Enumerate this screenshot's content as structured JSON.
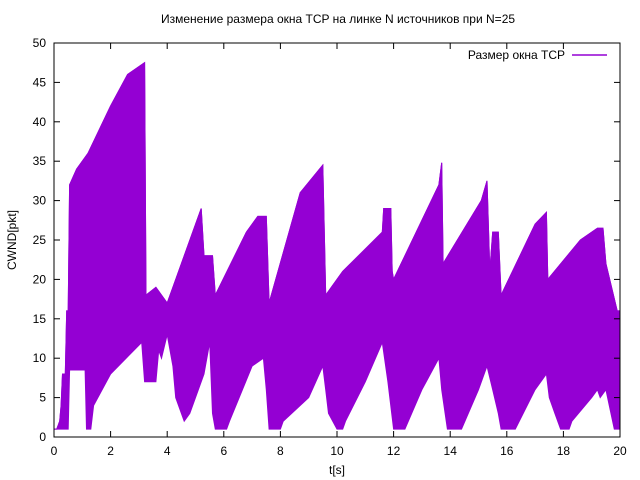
{
  "chart_data": {
    "type": "line",
    "title": "Изменение размера окна TCP на линке N источников при N=25",
    "xlabel": "t[s]",
    "ylabel": "CWND[pkt]",
    "xlim": [
      0,
      20
    ],
    "ylim": [
      0,
      50
    ],
    "xticks": [
      0,
      2,
      4,
      6,
      8,
      10,
      12,
      14,
      16,
      18,
      20
    ],
    "yticks": [
      0,
      5,
      10,
      15,
      20,
      25,
      30,
      35,
      40,
      45,
      50
    ],
    "grid": false,
    "legend_position": "top-right",
    "series": [
      {
        "name": "Размер окна TCP",
        "color": "#9400d3",
        "style": "dense oscillating fill (upper/lower envelope)",
        "upper_envelope": [
          [
            0.0,
            1
          ],
          [
            0.1,
            1
          ],
          [
            0.2,
            2
          ],
          [
            0.25,
            4
          ],
          [
            0.3,
            8
          ],
          [
            0.4,
            8
          ],
          [
            0.45,
            16
          ],
          [
            0.5,
            16
          ],
          [
            0.55,
            32
          ],
          [
            0.8,
            34
          ],
          [
            1.2,
            36
          ],
          [
            2.0,
            42
          ],
          [
            2.6,
            46
          ],
          [
            3.2,
            47.5
          ],
          [
            3.25,
            18
          ],
          [
            3.6,
            19
          ],
          [
            4.0,
            17
          ],
          [
            4.2,
            19
          ],
          [
            5.2,
            29
          ],
          [
            5.3,
            23
          ],
          [
            5.6,
            23
          ],
          [
            5.7,
            18
          ],
          [
            6.8,
            26
          ],
          [
            7.2,
            28
          ],
          [
            7.5,
            28
          ],
          [
            7.6,
            17
          ],
          [
            8.7,
            31
          ],
          [
            9.5,
            34.5
          ],
          [
            9.6,
            18
          ],
          [
            10.2,
            21
          ],
          [
            11.6,
            26
          ],
          [
            11.65,
            29
          ],
          [
            11.9,
            29
          ],
          [
            11.95,
            21
          ],
          [
            12.0,
            20
          ],
          [
            13.6,
            32
          ],
          [
            13.7,
            34.8
          ],
          [
            13.75,
            22
          ],
          [
            15.1,
            30
          ],
          [
            15.3,
            32.5
          ],
          [
            15.4,
            21
          ],
          [
            15.5,
            26
          ],
          [
            15.7,
            26
          ],
          [
            15.8,
            18
          ],
          [
            17.0,
            27
          ],
          [
            17.4,
            28.5
          ],
          [
            17.45,
            20
          ],
          [
            18.6,
            25
          ],
          [
            19.2,
            26.5
          ],
          [
            19.4,
            26.5
          ],
          [
            19.5,
            22
          ],
          [
            19.9,
            16
          ],
          [
            20.0,
            16
          ]
        ],
        "lower_envelope": [
          [
            0.0,
            1
          ],
          [
            0.5,
            1
          ],
          [
            0.55,
            8.5
          ],
          [
            1.1,
            8.5
          ],
          [
            1.15,
            1
          ],
          [
            1.3,
            1
          ],
          [
            1.4,
            4
          ],
          [
            2.0,
            8
          ],
          [
            3.1,
            12
          ],
          [
            3.2,
            7
          ],
          [
            3.6,
            7
          ],
          [
            3.7,
            11
          ],
          [
            3.8,
            10
          ],
          [
            4.0,
            13
          ],
          [
            4.2,
            9
          ],
          [
            4.3,
            5
          ],
          [
            4.6,
            2
          ],
          [
            4.8,
            3
          ],
          [
            5.3,
            8
          ],
          [
            5.5,
            12
          ],
          [
            5.6,
            3
          ],
          [
            5.7,
            1
          ],
          [
            6.1,
            1
          ],
          [
            6.2,
            2
          ],
          [
            7.0,
            9
          ],
          [
            7.4,
            10
          ],
          [
            7.5,
            6
          ],
          [
            7.6,
            1
          ],
          [
            8.0,
            1
          ],
          [
            8.1,
            2
          ],
          [
            9.0,
            5
          ],
          [
            9.5,
            9
          ],
          [
            9.6,
            6
          ],
          [
            9.7,
            3
          ],
          [
            10.0,
            1
          ],
          [
            10.2,
            1
          ],
          [
            10.3,
            2
          ],
          [
            11.0,
            7
          ],
          [
            11.6,
            12
          ],
          [
            11.8,
            7
          ],
          [
            12.0,
            1
          ],
          [
            12.4,
            1
          ],
          [
            13.0,
            6
          ],
          [
            13.6,
            10
          ],
          [
            13.7,
            6
          ],
          [
            13.9,
            1
          ],
          [
            14.4,
            1
          ],
          [
            15.0,
            6
          ],
          [
            15.3,
            9
          ],
          [
            15.5,
            6
          ],
          [
            15.7,
            3
          ],
          [
            15.8,
            1
          ],
          [
            16.3,
            1
          ],
          [
            17.0,
            6
          ],
          [
            17.4,
            8
          ],
          [
            17.5,
            5
          ],
          [
            17.7,
            3
          ],
          [
            17.9,
            1
          ],
          [
            18.2,
            1
          ],
          [
            18.3,
            2
          ],
          [
            19.0,
            5
          ],
          [
            19.2,
            6
          ],
          [
            19.3,
            5
          ],
          [
            19.5,
            6
          ],
          [
            19.8,
            1
          ],
          [
            20.0,
            1
          ]
        ]
      }
    ]
  }
}
